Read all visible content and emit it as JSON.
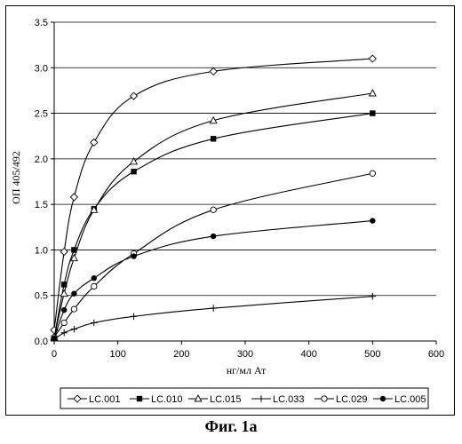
{
  "caption": "Фиг. 1а",
  "chart_data": {
    "type": "line",
    "xlabel": "нг/мл Ат",
    "ylabel": "ОП 405/492",
    "xlim": [
      0,
      600
    ],
    "ylim": [
      0,
      3.5
    ],
    "xticks": [
      0,
      100,
      200,
      300,
      400,
      500,
      600
    ],
    "yticks": [
      0.0,
      0.5,
      1.0,
      1.5,
      2.0,
      2.5,
      3.0,
      3.5
    ],
    "ytick_labels": [
      "0.0",
      "0.5",
      "1.0",
      "1.5",
      "2.0",
      "2.5",
      "3.0",
      "3.5"
    ],
    "grid": "horizontal",
    "legend_position": "bottom",
    "x": [
      0,
      15.6,
      31.25,
      62.5,
      125,
      250,
      500
    ],
    "series": [
      {
        "name": "LC.001",
        "marker": "diamond-open",
        "values": [
          0.12,
          0.98,
          1.58,
          2.18,
          2.69,
          2.96,
          3.1
        ]
      },
      {
        "name": "LC.010",
        "marker": "square-filled",
        "values": [
          0.03,
          0.62,
          1.0,
          1.45,
          1.86,
          2.22,
          2.5
        ]
      },
      {
        "name": "LC.015",
        "marker": "triangle-open",
        "values": [
          0.04,
          0.52,
          0.91,
          1.44,
          1.97,
          2.42,
          2.72
        ]
      },
      {
        "name": "LC.033",
        "marker": "plus",
        "values": [
          0.02,
          0.09,
          0.13,
          0.2,
          0.27,
          0.36,
          0.49
        ]
      },
      {
        "name": "LC.029",
        "marker": "circle-open",
        "values": [
          0.04,
          0.2,
          0.35,
          0.6,
          0.96,
          1.44,
          1.84
        ]
      },
      {
        "name": "LC.005",
        "marker": "circle-filled",
        "values": [
          0.03,
          0.34,
          0.52,
          0.69,
          0.93,
          1.15,
          1.32
        ]
      }
    ]
  }
}
